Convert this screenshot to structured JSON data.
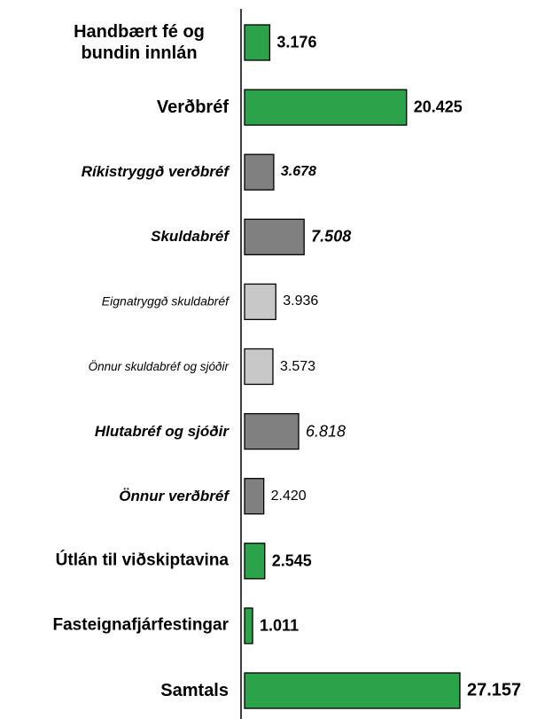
{
  "chart_data": {
    "type": "bar",
    "orientation": "horizontal",
    "categories": [
      "Handbært fé og bundin innlán",
      "Verðbréf",
      "Ríkistryggð verðbréf",
      "Skuldabréf",
      "Eignatryggð skuldabréf",
      "Önnur skuldabréf og sjóðir",
      "Hlutabréf og sjóðir",
      "Önnur verðbréf",
      "Útlán til viðskiptavina",
      "Fasteignafjárfestingar",
      "Samtals"
    ],
    "values": [
      3176,
      20425,
      3678,
      7508,
      3936,
      3573,
      6818,
      2420,
      2545,
      1011,
      27157
    ],
    "value_labels": [
      "3.176",
      "20.425",
      "3.678",
      "7.508",
      "3.936",
      "3.573",
      "6.818",
      "2.420",
      "2.545",
      "1.011",
      "27.157"
    ],
    "colors": [
      "#2ca24a",
      "#2ca24a",
      "#808080",
      "#808080",
      "#c8c8c8",
      "#c8c8c8",
      "#808080",
      "#808080",
      "#2ca24a",
      "#2ca24a",
      "#2ca24a"
    ]
  }
}
